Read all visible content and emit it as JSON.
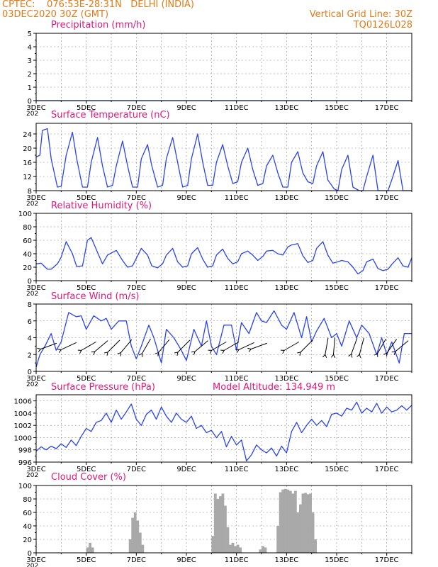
{
  "header": {
    "left_line1": "CPTEC:    076:53E-28:31N   DELHI (INDIA)",
    "left_line2": "03DEC2020 30Z (GMT)",
    "right_line1": "Vertical Grid Line: 30Z",
    "right_line2": "TQ0126L028"
  },
  "x_ticks": [
    "3DEC",
    "5DEC",
    "7DEC",
    "9DEC",
    "11DEC",
    "13DEC",
    "15DEC",
    "17DEC"
  ],
  "x_year_stub": "202",
  "panels": {
    "precip": {
      "title": "Precipitation (mm/h)",
      "yticks": [
        "0",
        "1",
        "2",
        "3",
        "4",
        "5"
      ]
    },
    "temp": {
      "title": "Surface Temperature (nC)",
      "yticks": [
        "8",
        "12",
        "16",
        "20",
        "24"
      ]
    },
    "humidity": {
      "title": "Relative Humidity (%)",
      "yticks": [
        "0",
        "20",
        "40",
        "60",
        "80",
        "100"
      ]
    },
    "wind": {
      "title": "Surface Wind (m/s)",
      "yticks": [
        "0",
        "2",
        "4",
        "6",
        "8"
      ]
    },
    "pressure": {
      "title": "Surface Pressure (hPa)",
      "yticks": [
        "996",
        "998",
        "1000",
        "1002",
        "1004",
        "1006"
      ],
      "altitude_label": "Model Altitude: 134.949 m"
    },
    "cloud": {
      "title": "Cloud Cover (%)",
      "yticks": [
        "0",
        "20",
        "40",
        "60",
        "80",
        "100"
      ]
    }
  },
  "colors": {
    "header": "#e07b1a",
    "title": "#e0187a",
    "line": "#2a44e8",
    "bars": "#a9a9a9"
  },
  "chart_data": [
    {
      "type": "line",
      "title": "Precipitation (mm/h)",
      "ylim": [
        0,
        5
      ],
      "x_range_days": [
        3,
        18
      ],
      "series": [
        {
          "x": [
            3,
            18
          ],
          "values": [
            0,
            0
          ]
        }
      ]
    },
    {
      "type": "line",
      "title": "Surface Temperature (nC)",
      "ylim": [
        8,
        27
      ],
      "x_range_days": [
        3,
        18
      ],
      "series": [
        {
          "x": [
            3.0,
            3.15,
            3.25,
            3.45,
            3.6,
            3.85,
            4.0,
            4.2,
            4.45,
            4.62,
            4.85,
            5.05,
            5.2,
            5.45,
            5.65,
            5.85,
            6.05,
            6.2,
            6.45,
            6.65,
            6.85,
            7.05,
            7.2,
            7.45,
            7.62,
            7.85,
            8.05,
            8.2,
            8.45,
            8.65,
            8.85,
            9.05,
            9.2,
            9.45,
            9.65,
            9.85,
            10.05,
            10.2,
            10.45,
            10.65,
            10.85,
            11.05,
            11.2,
            11.45,
            11.65,
            11.85,
            12.05,
            12.2,
            12.45,
            12.65,
            12.85,
            13.05,
            13.2,
            13.45,
            13.65,
            13.85,
            14.05,
            14.2,
            14.45,
            14.65,
            14.9,
            15.05,
            15.2,
            15.45,
            15.65,
            15.9,
            16.05,
            16.2,
            16.45,
            16.65,
            16.9,
            17.05,
            17.2,
            17.45,
            17.65,
            17.9,
            18.0
          ],
          "values": [
            17.5,
            18,
            25,
            25.5,
            17,
            9,
            9.2,
            18,
            24.5,
            17,
            9,
            9,
            16,
            23,
            15,
            9,
            9.5,
            15,
            22,
            15,
            9,
            9,
            17,
            21,
            15,
            9,
            9.5,
            17,
            23,
            16,
            9,
            9.5,
            17,
            24,
            16,
            9.5,
            9.5,
            16,
            21,
            15,
            10,
            10.5,
            16,
            20,
            14,
            9.5,
            10,
            15,
            18,
            13,
            9,
            9,
            16,
            19,
            13,
            10.5,
            10,
            15,
            19,
            11,
            8.5,
            8,
            14,
            18,
            9,
            7.5,
            8,
            12,
            18,
            8,
            7.5,
            7.5,
            11,
            16.5,
            8,
            7.5,
            7.5
          ]
        }
      ]
    },
    {
      "type": "line",
      "title": "Relative Humidity (%)",
      "ylim": [
        0,
        100
      ],
      "x_range_days": [
        3,
        18
      ],
      "series": [
        {
          "x": [
            3.0,
            3.2,
            3.45,
            3.6,
            3.85,
            4.0,
            4.2,
            4.45,
            4.62,
            4.85,
            5.05,
            5.2,
            5.45,
            5.65,
            5.85,
            6.05,
            6.2,
            6.45,
            6.65,
            6.85,
            7.05,
            7.2,
            7.45,
            7.62,
            7.85,
            8.05,
            8.2,
            8.45,
            8.65,
            8.85,
            9.05,
            9.2,
            9.45,
            9.65,
            9.85,
            10.05,
            10.2,
            10.45,
            10.65,
            10.85,
            11.05,
            11.2,
            11.45,
            11.65,
            11.85,
            12.05,
            12.2,
            12.45,
            12.65,
            12.85,
            13.05,
            13.2,
            13.45,
            13.65,
            13.85,
            14.05,
            14.2,
            14.45,
            14.65,
            14.85,
            15.05,
            15.2,
            15.45,
            15.65,
            15.85,
            16.05,
            16.2,
            16.45,
            16.65,
            16.85,
            17.05,
            17.2,
            17.45,
            17.65,
            17.85,
            18.0
          ],
          "values": [
            25,
            26,
            17,
            17,
            25,
            35,
            58,
            40,
            21,
            22,
            60,
            64,
            42,
            25,
            38,
            42,
            45,
            30,
            20,
            22,
            37,
            48,
            38,
            22,
            19,
            25,
            38,
            48,
            28,
            20,
            22,
            40,
            49,
            32,
            20,
            22,
            38,
            47,
            33,
            25,
            28,
            40,
            44,
            38,
            30,
            36,
            44,
            45,
            40,
            38,
            50,
            53,
            55,
            37,
            27,
            30,
            48,
            58,
            38,
            26,
            28,
            30,
            28,
            20,
            10,
            15,
            28,
            32,
            18,
            15,
            17,
            24,
            34,
            22,
            20,
            34
          ]
        }
      ]
    },
    {
      "type": "line",
      "title": "Surface Wind (m/s)",
      "ylim": [
        0,
        8
      ],
      "x_range_days": [
        3,
        18
      ],
      "series": [
        {
          "x": [
            3.0,
            3.15,
            3.35,
            3.6,
            3.8,
            4.0,
            4.3,
            4.6,
            4.8,
            5.0,
            5.3,
            5.6,
            5.8,
            6.0,
            6.3,
            6.6,
            6.8,
            7.0,
            7.2,
            7.5,
            7.7,
            8.0,
            8.2,
            8.5,
            8.8,
            9.0,
            9.3,
            9.6,
            9.8,
            10.0,
            10.2,
            10.5,
            10.8,
            11.0,
            11.2,
            11.5,
            11.8,
            12.0,
            12.2,
            12.5,
            12.8,
            13.0,
            13.3,
            13.6,
            13.8,
            14.0,
            14.2,
            14.5,
            14.8,
            15.0,
            15.2,
            15.5,
            15.8,
            16.0,
            16.3,
            16.6,
            16.8,
            17.0,
            17.2,
            17.5,
            17.7,
            18.0
          ],
          "values": [
            0.5,
            2,
            3,
            4.5,
            2.5,
            3.5,
            7,
            6.5,
            6.6,
            5,
            6.6,
            6,
            6.3,
            5,
            6,
            6,
            3,
            1.5,
            3,
            5.5,
            4,
            1,
            5,
            4,
            2.5,
            1.3,
            5,
            3,
            6,
            3,
            2,
            5.5,
            5.5,
            2.5,
            5.8,
            4.5,
            7,
            6,
            5.8,
            7.2,
            5.5,
            5,
            7,
            4,
            6.5,
            3.5,
            4.8,
            6.3,
            4,
            4.5,
            3,
            6,
            4,
            5.5,
            4.5,
            2,
            4,
            2,
            3.5,
            1,
            4.5,
            4.5
          ]
        }
      ],
      "arrows_days": [
        3.5,
        4.3,
        5.1,
        5.6,
        6.1,
        6.6,
        7.4,
        8.1,
        8.9,
        9.6,
        10.3,
        10.8,
        11.4,
        11.9,
        13.2,
        13.8,
        14.6,
        14.9,
        15.7,
        16.0,
        16.8,
        17.2,
        17.6
      ]
    },
    {
      "type": "line",
      "title": "Surface Pressure (hPa)",
      "ylim": [
        996,
        1007
      ],
      "x_range_days": [
        3,
        18
      ],
      "series": [
        {
          "x": [
            3.0,
            3.2,
            3.4,
            3.6,
            3.8,
            4.0,
            4.2,
            4.4,
            4.6,
            4.8,
            5.0,
            5.2,
            5.4,
            5.6,
            5.8,
            6.0,
            6.2,
            6.4,
            6.6,
            6.8,
            7.0,
            7.2,
            7.4,
            7.6,
            7.8,
            8.0,
            8.2,
            8.4,
            8.6,
            8.8,
            9.0,
            9.2,
            9.4,
            9.6,
            9.8,
            10.0,
            10.2,
            10.4,
            10.6,
            10.8,
            11.0,
            11.2,
            11.4,
            11.6,
            11.8,
            12.0,
            12.2,
            12.4,
            12.6,
            12.8,
            13.0,
            13.2,
            13.4,
            13.6,
            13.8,
            14.0,
            14.2,
            14.4,
            14.6,
            14.8,
            15.0,
            15.2,
            15.4,
            15.6,
            15.8,
            16.0,
            16.2,
            16.4,
            16.6,
            16.8,
            17.0,
            17.2,
            17.4,
            17.6,
            17.8,
            18.0
          ],
          "values": [
            997.8,
            998.5,
            998.0,
            998.6,
            998.2,
            999.0,
            998.4,
            999.6,
            998.7,
            1000.2,
            1001.5,
            1001.0,
            1002.5,
            1002.8,
            1004.0,
            1002.5,
            1004.5,
            1003.0,
            1004.2,
            1005.5,
            1003.0,
            1002.0,
            1003.8,
            1004.5,
            1003.0,
            1005.0,
            1003.5,
            1002.5,
            1004.0,
            1003.0,
            1002.5,
            1003.5,
            1001.5,
            1002.0,
            1000.8,
            1001.2,
            1000.0,
            1001.0,
            998.5,
            1000.2,
            998.8,
            999.6,
            996.2,
            997.2,
            998.8,
            998.0,
            997.5,
            998.3,
            997.0,
            998.6,
            997.5,
            1001.0,
            1002.5,
            1000.8,
            1002.0,
            1003.0,
            1002.0,
            1002.8,
            1001.8,
            1003.8,
            1004.0,
            1003.5,
            1004.8,
            1004.5,
            1005.8,
            1004.0,
            1004.8,
            1004.2,
            1005.6,
            1004.0,
            1005.0,
            1004.2,
            1004.5,
            1005.2,
            1004.5,
            1005.3
          ]
        }
      ]
    },
    {
      "type": "bar",
      "title": "Cloud Cover (%)",
      "ylim": [
        0,
        100
      ],
      "x_range_days": [
        3,
        18
      ],
      "bins": [
        [
          5.0,
          8
        ],
        [
          5.1,
          15
        ],
        [
          5.2,
          8
        ],
        [
          6.7,
          20
        ],
        [
          6.8,
          52
        ],
        [
          6.9,
          60
        ],
        [
          7.0,
          48
        ],
        [
          7.1,
          30
        ],
        [
          7.2,
          12
        ],
        [
          10.0,
          25
        ],
        [
          10.1,
          88
        ],
        [
          10.2,
          80
        ],
        [
          10.3,
          84
        ],
        [
          10.4,
          88
        ],
        [
          10.5,
          70
        ],
        [
          10.6,
          38
        ],
        [
          10.7,
          12
        ],
        [
          10.8,
          15
        ],
        [
          10.9,
          10
        ],
        [
          11.0,
          12
        ],
        [
          11.1,
          8
        ],
        [
          11.9,
          5
        ],
        [
          12.0,
          10
        ],
        [
          12.1,
          8
        ],
        [
          12.6,
          40
        ],
        [
          12.7,
          90
        ],
        [
          12.8,
          94
        ],
        [
          12.9,
          95
        ],
        [
          13.0,
          94
        ],
        [
          13.1,
          92
        ],
        [
          13.2,
          88
        ],
        [
          13.3,
          92
        ],
        [
          13.4,
          60
        ],
        [
          13.5,
          72
        ],
        [
          13.6,
          88
        ],
        [
          13.7,
          89
        ],
        [
          13.8,
          87
        ],
        [
          13.9,
          88
        ],
        [
          14.0,
          60
        ],
        [
          14.1,
          20
        ]
      ]
    }
  ]
}
